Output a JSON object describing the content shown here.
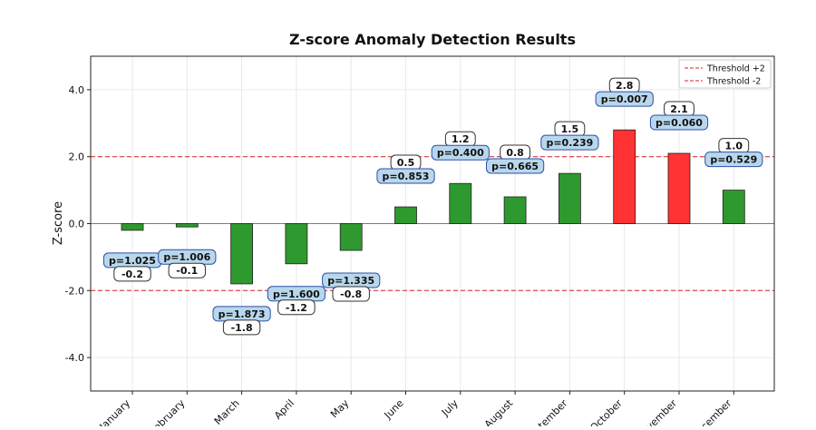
{
  "chart_data": {
    "type": "bar",
    "title": "Z-score Anomaly Detection Results",
    "xlabel": "",
    "ylabel": "Z-score",
    "ylim": [
      -5,
      5
    ],
    "yticks": [
      -4,
      -2,
      0,
      2,
      4
    ],
    "ytick_labels": [
      "-4.0",
      "-2.0",
      "0.0",
      "2.0",
      "4.0"
    ],
    "grid": true,
    "legend_position": "top-right",
    "categories": [
      "January",
      "February",
      "March",
      "April",
      "May",
      "June",
      "July",
      "August",
      "September",
      "October",
      "November",
      "December"
    ],
    "values": [
      -0.2,
      -0.1,
      -1.8,
      -1.2,
      -0.8,
      0.5,
      1.2,
      0.8,
      1.5,
      2.8,
      2.1,
      1.0
    ],
    "value_labels": [
      "-0.2",
      "-0.1",
      "-1.8",
      "-1.2",
      "-0.8",
      "0.5",
      "1.2",
      "0.8",
      "1.5",
      "2.8",
      "2.1",
      "1.0"
    ],
    "p_labels": [
      "p=1.025",
      "p=1.006",
      "p=1.873",
      "p=1.600",
      "p=1.335",
      "p=0.853",
      "p=0.400",
      "p=0.665",
      "p=0.239",
      "p=0.007",
      "p=0.060",
      "p=0.529"
    ],
    "anomaly": [
      false,
      false,
      false,
      false,
      false,
      false,
      false,
      false,
      false,
      true,
      true,
      false
    ],
    "thresholds": [
      {
        "label": "Threshold +2",
        "value": 2
      },
      {
        "label": "Threshold -2",
        "value": -2
      }
    ],
    "colors": {
      "normal": "#2e992e",
      "anomaly": "#ff3333",
      "threshold": "#dd2222",
      "p_box_fill": "#b9d7ec",
      "p_box_edge": "#2b4fa8"
    }
  }
}
